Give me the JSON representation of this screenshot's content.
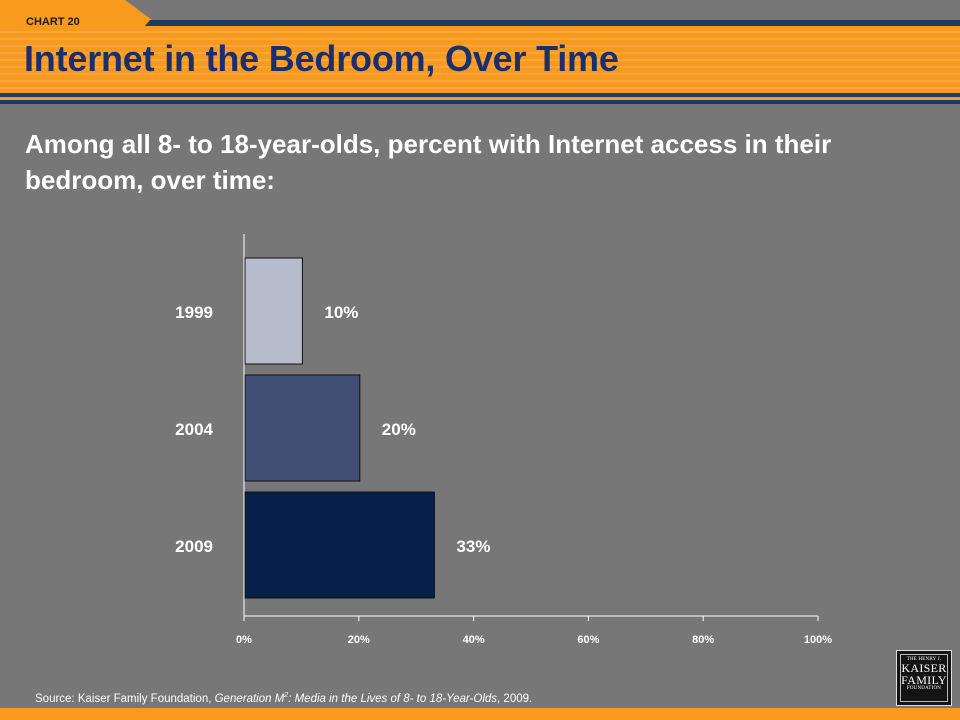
{
  "slide": {
    "chart_tag": "CHART 20",
    "title": "Internet in the Bedroom, Over Time",
    "subtitle": "Among all 8- to 18-year-olds, percent with Internet access in their bedroom, over time:"
  },
  "source": {
    "prefix": "Source: Kaiser Family Foundation, ",
    "pub_a": "Generation M",
    "pub_sup": "2",
    "pub_b": ": Media in the Lives of 8- to 18-Year-Olds",
    "suffix": ", 2009."
  },
  "logo": {
    "line1": "THE HENRY J.",
    "line2": "KAISER",
    "line3": "FAMILY",
    "line4": "FOUNDATION"
  },
  "colors": {
    "header_orange": "#f89a1d",
    "header_navy": "#1f3a64",
    "title_navy": "#1b2f6e",
    "background": "#777777"
  },
  "chart_data": {
    "type": "bar",
    "orientation": "horizontal",
    "categories": [
      "1999",
      "2004",
      "2009"
    ],
    "values": [
      10,
      20,
      33
    ],
    "value_labels": [
      "10%",
      "20%",
      "33%"
    ],
    "bar_colors": [
      "#b7bccc",
      "#414f75",
      "#06204b"
    ],
    "xlim": [
      0,
      100
    ],
    "xticks": [
      "0%",
      "20%",
      "40%",
      "60%",
      "80%",
      "100%"
    ],
    "grid": false,
    "legend": "none"
  }
}
